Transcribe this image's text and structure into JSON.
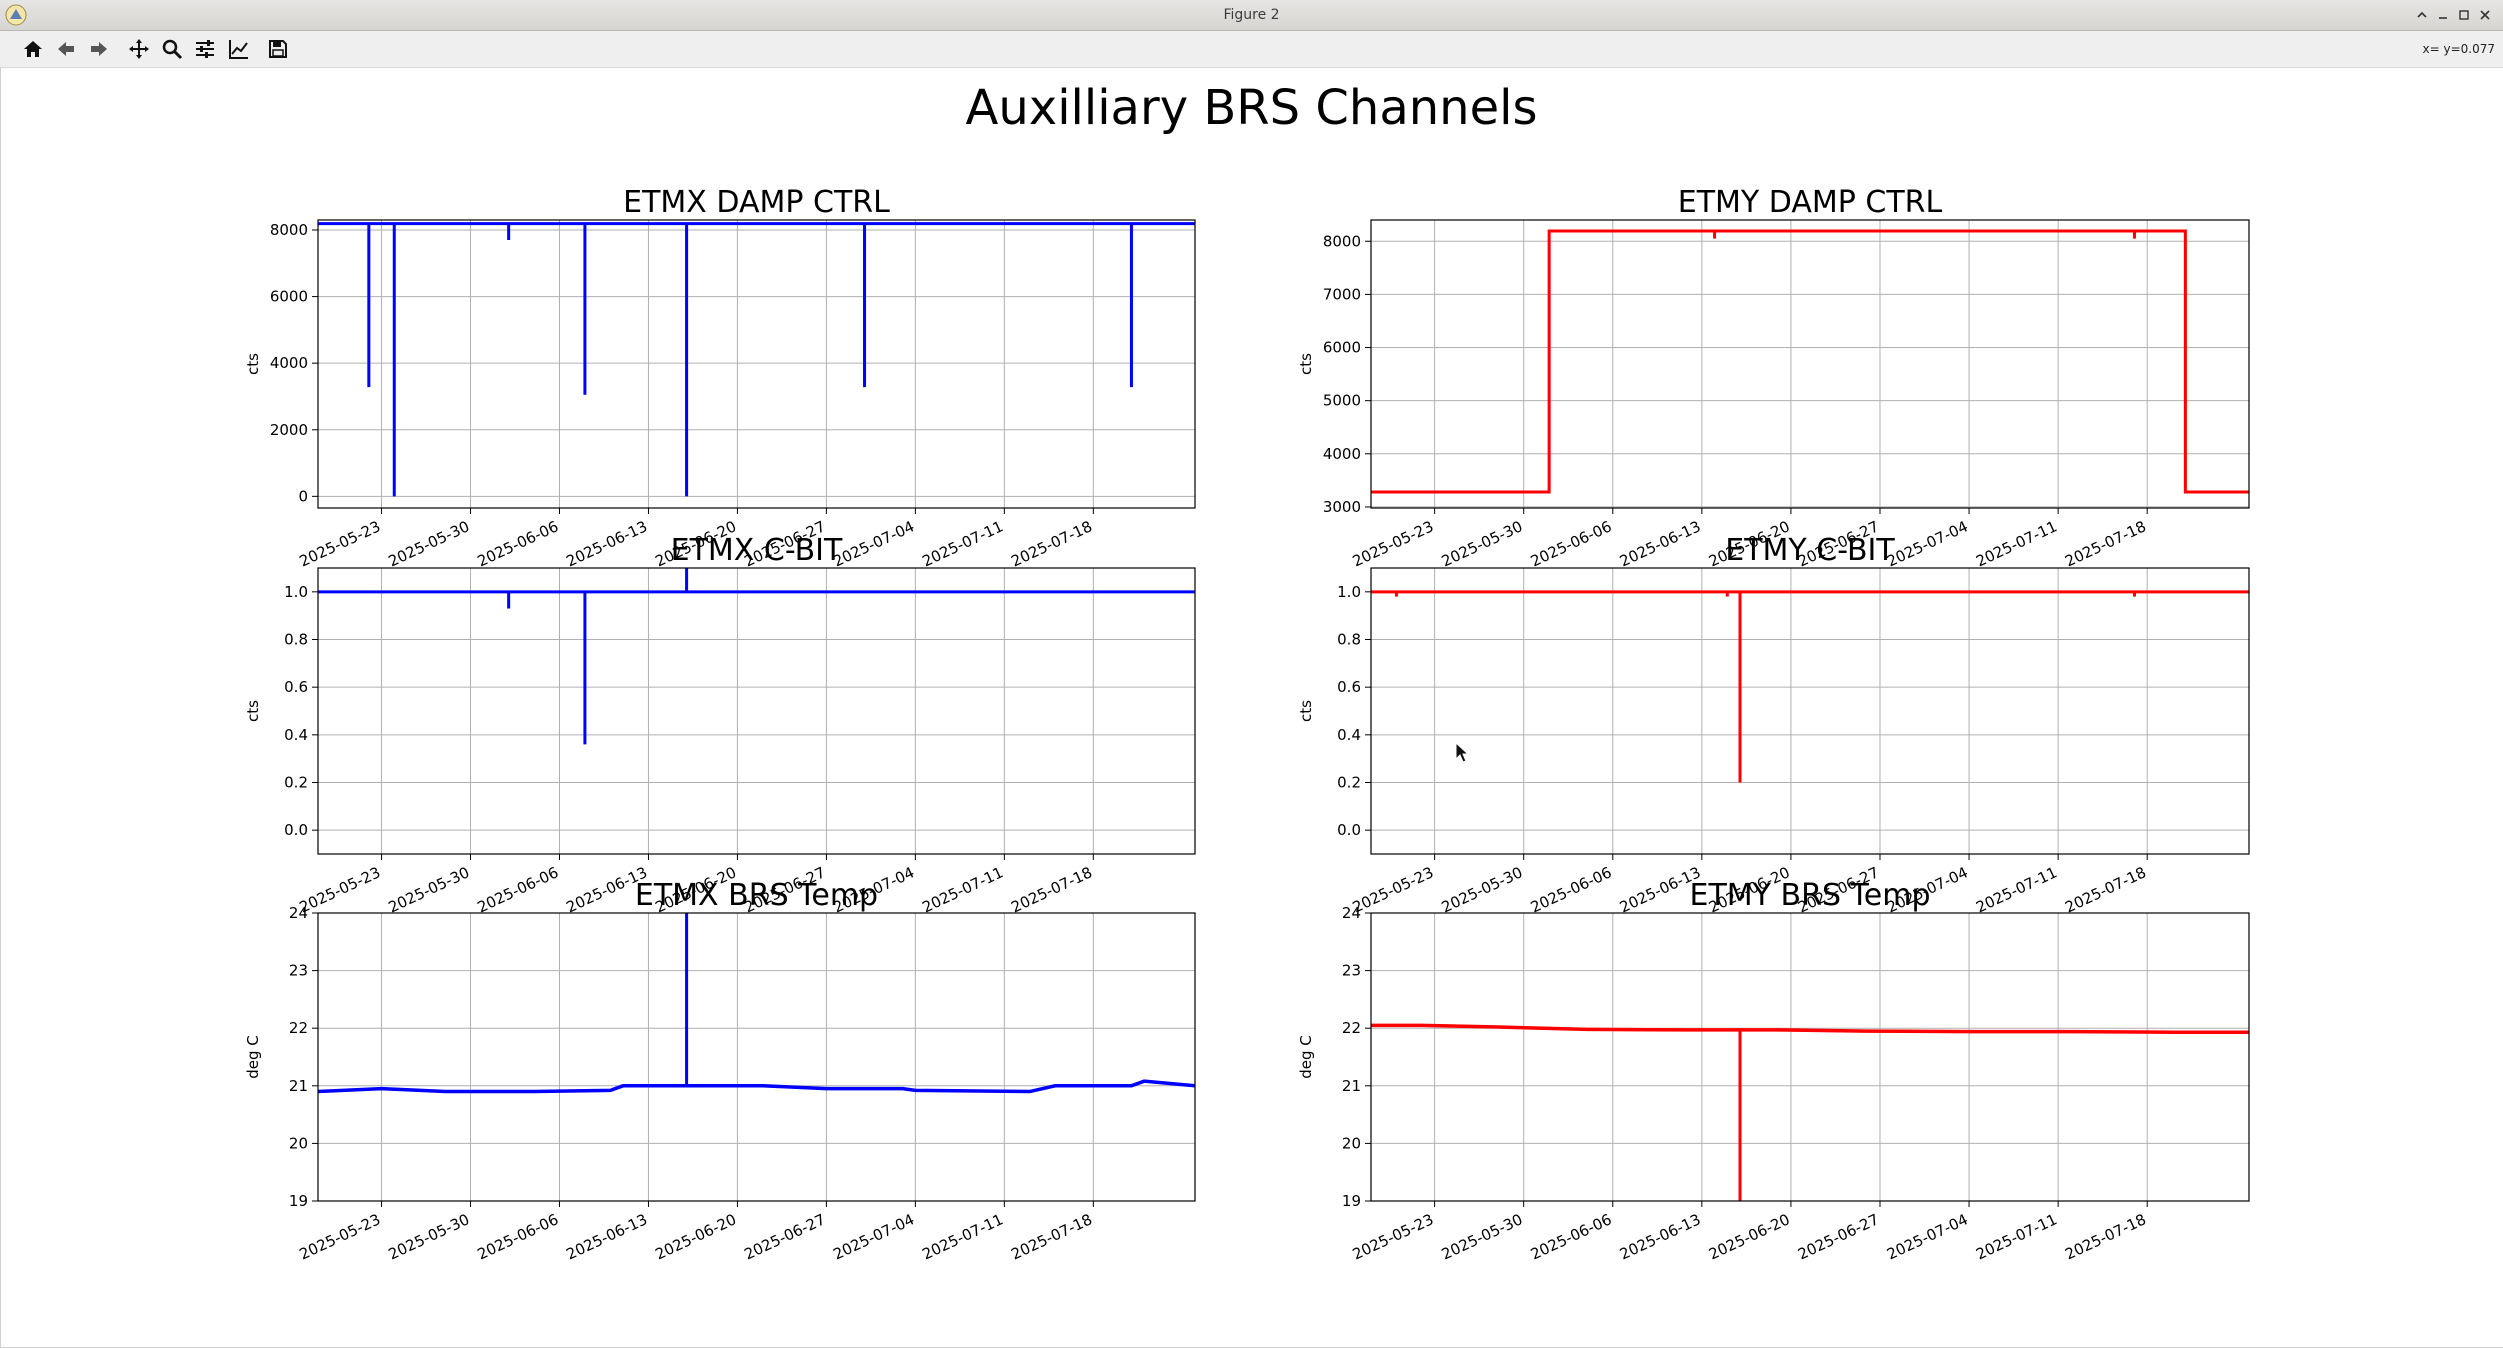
{
  "window": {
    "title": "Figure 2",
    "controls": [
      "minimize-icon",
      "maximize-icon",
      "close-icon"
    ]
  },
  "toolbar": {
    "buttons": [
      "home-icon",
      "back-icon",
      "forward-icon",
      "pan-icon",
      "zoom-icon",
      "configure-subplots-icon",
      "edit-axis-icon",
      "save-icon"
    ],
    "coordinate_readout": "x= y=0.077"
  },
  "figure": {
    "suptitle": "Auxilliary BRS Channels"
  },
  "colors": {
    "etmx": "#0000ff",
    "etmy": "#ff0000",
    "grid": "#b0b0b0"
  },
  "chart_data": [
    {
      "type": "line",
      "title": "ETMX DAMP CTRL",
      "ylabel": "cts",
      "xlabel": "",
      "x_range": [
        "2025-05-18",
        "2025-07-26"
      ],
      "ylim": [
        -350,
        8300
      ],
      "yticks": [
        0,
        2000,
        4000,
        6000,
        8000
      ],
      "xticks": [
        "2025-05-23",
        "2025-05-30",
        "2025-06-06",
        "2025-06-13",
        "2025-06-20",
        "2025-06-27",
        "2025-07-04",
        "2025-07-11",
        "2025-07-18"
      ],
      "grid": true,
      "color": "#0000ff",
      "baseline": 8192,
      "spikes": [
        {
          "x": "2025-05-22",
          "y": 3280
        },
        {
          "x": "2025-05-24",
          "y": 0
        },
        {
          "x": "2025-06-02",
          "y": 7700
        },
        {
          "x": "2025-06-08",
          "y": 3050
        },
        {
          "x": "2025-06-16",
          "y": 0
        },
        {
          "x": "2025-06-30",
          "y": 3280
        },
        {
          "x": "2025-07-21",
          "y": 3280
        }
      ]
    },
    {
      "type": "line",
      "title": "ETMY DAMP CTRL",
      "ylabel": "cts",
      "xlabel": "",
      "x_range": [
        "2025-05-18",
        "2025-07-26"
      ],
      "ylim": [
        2980,
        8400
      ],
      "yticks": [
        3000,
        4000,
        5000,
        6000,
        7000,
        8000
      ],
      "xticks": [
        "2025-05-23",
        "2025-05-30",
        "2025-06-06",
        "2025-06-13",
        "2025-06-20",
        "2025-06-27",
        "2025-07-04",
        "2025-07-11",
        "2025-07-18"
      ],
      "grid": true,
      "color": "#ff0000",
      "steps": [
        {
          "x": "2025-05-18",
          "y": 3280
        },
        {
          "x": "2025-06-01",
          "y": 8192
        },
        {
          "x": "2025-07-21",
          "y": 3280
        },
        {
          "x": "2025-07-26",
          "y": 3280
        }
      ],
      "spikes": [
        {
          "x": "2025-06-14",
          "y": 8050
        },
        {
          "x": "2025-07-17",
          "y": 8050
        }
      ]
    },
    {
      "type": "line",
      "title": "ETMX C-BIT",
      "ylabel": "cts",
      "xlabel": "",
      "x_range": [
        "2025-05-18",
        "2025-07-26"
      ],
      "ylim": [
        -0.1,
        1.1
      ],
      "yticks": [
        0.0,
        0.2,
        0.4,
        0.6,
        0.8,
        1.0
      ],
      "xticks": [
        "2025-05-23",
        "2025-05-30",
        "2025-06-06",
        "2025-06-13",
        "2025-06-20",
        "2025-06-27",
        "2025-07-04",
        "2025-07-11",
        "2025-07-18"
      ],
      "grid": true,
      "color": "#0000ff",
      "baseline": 1.0,
      "spikes": [
        {
          "x": "2025-06-02",
          "y": 0.93
        },
        {
          "x": "2025-06-08",
          "y": 0.36
        },
        {
          "x": "2025-06-16",
          "y": 1.1
        }
      ]
    },
    {
      "type": "line",
      "title": "ETMY C-BIT",
      "ylabel": "cts",
      "xlabel": "",
      "x_range": [
        "2025-05-18",
        "2025-07-26"
      ],
      "ylim": [
        -0.1,
        1.1
      ],
      "yticks": [
        0.0,
        0.2,
        0.4,
        0.6,
        0.8,
        1.0
      ],
      "xticks": [
        "2025-05-23",
        "2025-05-30",
        "2025-06-06",
        "2025-06-13",
        "2025-06-20",
        "2025-06-27",
        "2025-07-04",
        "2025-07-11",
        "2025-07-18"
      ],
      "grid": true,
      "color": "#ff0000",
      "baseline": 1.0,
      "spikes": [
        {
          "x": "2025-05-20",
          "y": 0.98
        },
        {
          "x": "2025-06-15",
          "y": 0.98
        },
        {
          "x": "2025-06-16",
          "y": 0.2
        },
        {
          "x": "2025-07-17",
          "y": 0.98
        }
      ]
    },
    {
      "type": "line",
      "title": "ETMX BRS Temp",
      "ylabel": "deg C",
      "xlabel": "",
      "x_range": [
        "2025-05-18",
        "2025-07-26"
      ],
      "ylim": [
        19,
        24
      ],
      "yticks": [
        19,
        20,
        21,
        22,
        23,
        24
      ],
      "xticks": [
        "2025-05-23",
        "2025-05-30",
        "2025-06-06",
        "2025-06-13",
        "2025-06-20",
        "2025-06-27",
        "2025-07-04",
        "2025-07-11",
        "2025-07-18"
      ],
      "grid": true,
      "color": "#0000ff",
      "series": [
        {
          "x": "2025-05-18",
          "y": 20.9
        },
        {
          "x": "2025-05-23",
          "y": 20.95
        },
        {
          "x": "2025-05-28",
          "y": 20.9
        },
        {
          "x": "2025-06-04",
          "y": 20.9
        },
        {
          "x": "2025-06-10",
          "y": 20.92
        },
        {
          "x": "2025-06-11",
          "y": 21.0
        },
        {
          "x": "2025-06-16",
          "y": 21.0
        },
        {
          "x": "2025-06-22",
          "y": 21.0
        },
        {
          "x": "2025-06-27",
          "y": 20.95
        },
        {
          "x": "2025-07-03",
          "y": 20.95
        },
        {
          "x": "2025-07-04",
          "y": 20.92
        },
        {
          "x": "2025-07-13",
          "y": 20.9
        },
        {
          "x": "2025-07-15",
          "y": 21.0
        },
        {
          "x": "2025-07-21",
          "y": 21.0
        },
        {
          "x": "2025-07-22",
          "y": 21.08
        },
        {
          "x": "2025-07-26",
          "y": 21.0
        }
      ],
      "spikes": [
        {
          "x": "2025-06-16",
          "y": 24
        }
      ]
    },
    {
      "type": "line",
      "title": "ETMY BRS Temp",
      "ylabel": "deg C",
      "xlabel": "",
      "x_range": [
        "2025-05-18",
        "2025-07-26"
      ],
      "ylim": [
        19,
        24
      ],
      "yticks": [
        19,
        20,
        21,
        22,
        23,
        24
      ],
      "xticks": [
        "2025-05-23",
        "2025-05-30",
        "2025-06-06",
        "2025-06-13",
        "2025-06-20",
        "2025-06-27",
        "2025-07-04",
        "2025-07-11",
        "2025-07-18"
      ],
      "grid": true,
      "color": "#ff0000",
      "series": [
        {
          "x": "2025-05-18",
          "y": 22.05
        },
        {
          "x": "2025-05-22",
          "y": 22.05
        },
        {
          "x": "2025-05-28",
          "y": 22.02
        },
        {
          "x": "2025-06-04",
          "y": 21.98
        },
        {
          "x": "2025-06-12",
          "y": 21.97
        },
        {
          "x": "2025-06-19",
          "y": 21.97
        },
        {
          "x": "2025-06-26",
          "y": 21.95
        },
        {
          "x": "2025-07-04",
          "y": 21.94
        },
        {
          "x": "2025-07-12",
          "y": 21.94
        },
        {
          "x": "2025-07-20",
          "y": 21.93
        },
        {
          "x": "2025-07-26",
          "y": 21.93
        }
      ],
      "spikes": [
        {
          "x": "2025-06-16",
          "y": 19
        }
      ]
    }
  ]
}
